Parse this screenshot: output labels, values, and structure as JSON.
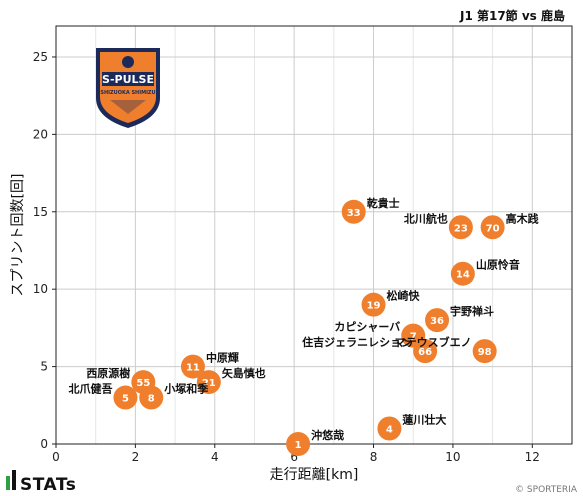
{
  "header": {
    "title": "J1 第17節 vs 鹿島"
  },
  "crest": {
    "name": "S-PULSE",
    "sub": "SHIZUOKA SHIMIZU"
  },
  "footer": {
    "brand": "STATs",
    "copyright": "© SPORTERIA"
  },
  "colors": {
    "marker": "#f07f2d",
    "marker_text": "#ffffff",
    "grid": "#cccccc",
    "crest_orange": "#f07f2d",
    "crest_navy": "#1c2a5a"
  },
  "chart_data": {
    "type": "scatter",
    "title": "",
    "xlabel": "走行距離[km]",
    "ylabel": "スプリント回数[回]",
    "xlim": [
      0,
      13
    ],
    "ylim": [
      0,
      27
    ],
    "xticks": [
      0,
      2,
      4,
      6,
      8,
      10,
      12
    ],
    "yticks": [
      0,
      5,
      10,
      15,
      20,
      25
    ],
    "grid": true,
    "points": [
      {
        "number": "33",
        "name": "乾貴士",
        "x": 7.5,
        "y": 15,
        "label_side": "right"
      },
      {
        "number": "23",
        "name": "北川航也",
        "x": 10.2,
        "y": 14,
        "label_side": "left"
      },
      {
        "number": "70",
        "name": "高木践",
        "x": 11.0,
        "y": 14,
        "label_side": "right"
      },
      {
        "number": "14",
        "name": "山原怜音",
        "x": 10.25,
        "y": 11,
        "label_side": "right"
      },
      {
        "number": "19",
        "name": "松崎快",
        "x": 8.0,
        "y": 9,
        "label_side": "right"
      },
      {
        "number": "36",
        "name": "宇野禅斗",
        "x": 9.6,
        "y": 8,
        "label_side": "right"
      },
      {
        "number": "7",
        "name": "カピシャーバ",
        "x": 9.0,
        "y": 7,
        "label_side": "left"
      },
      {
        "number": "66",
        "name": "住吉ジェラニレション",
        "x": 9.3,
        "y": 6,
        "label_side": "left"
      },
      {
        "number": "98",
        "name": "マテウスブエノ",
        "x": 10.8,
        "y": 6,
        "label_side": "left"
      },
      {
        "number": "11",
        "name": "中原輝",
        "x": 3.45,
        "y": 5,
        "label_side": "right"
      },
      {
        "number": "21",
        "name": "矢島慎也",
        "x": 3.85,
        "y": 4,
        "label_side": "right"
      },
      {
        "number": "55",
        "name": "西原源樹",
        "x": 2.2,
        "y": 4,
        "label_side": "left"
      },
      {
        "number": "5",
        "name": "北爪健吾",
        "x": 1.75,
        "y": 3,
        "label_side": "left"
      },
      {
        "number": "8",
        "name": "小塚和季",
        "x": 2.4,
        "y": 3,
        "label_side": "right"
      },
      {
        "number": "4",
        "name": "蓮川壮大",
        "x": 8.4,
        "y": 1,
        "label_side": "right"
      },
      {
        "number": "1",
        "name": "沖悠哉",
        "x": 6.1,
        "y": 0,
        "label_side": "right"
      }
    ]
  }
}
